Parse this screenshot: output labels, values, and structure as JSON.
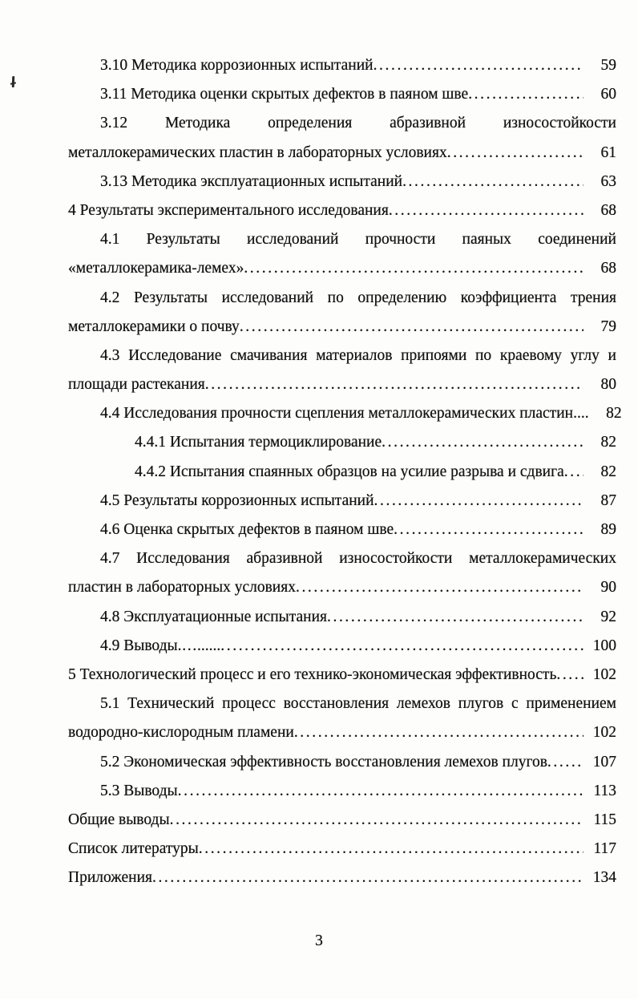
{
  "toc": {
    "lines": [
      {
        "text": "3.10 Методика коррозионных испытаний",
        "page": "59",
        "indent": 1,
        "justify": false
      },
      {
        "text": "3.11 Методика оценки скрытых дефектов в паяном шве",
        "page": "60",
        "indent": 1,
        "justify": false
      },
      {
        "text": "3.12 Методика определения абразивной износостойкости",
        "page": null,
        "indent": 1,
        "justify": true
      },
      {
        "text": "металлокерамических пластин в лабораторных условиях",
        "page": "61",
        "indent": 0,
        "justify": false
      },
      {
        "text": "3.13 Методика эксплуатационных испытаний",
        "page": "63",
        "indent": 1,
        "justify": false
      },
      {
        "text": "4 Результаты экспериментального исследования",
        "page": "68",
        "indent": 0,
        "justify": false
      },
      {
        "text": "4.1 Результаты исследований прочности паяных соединений",
        "page": null,
        "indent": 1,
        "justify": true
      },
      {
        "text": "«металлокерамика-лемех»",
        "page": "68",
        "indent": 0,
        "justify": false
      },
      {
        "text": "4.2 Результаты исследований по определению коэффициента трения",
        "page": null,
        "indent": 1,
        "justify": true
      },
      {
        "text": "металлокерамики о почву",
        "page": "79",
        "indent": 0,
        "justify": false
      },
      {
        "text": "4.3 Исследование смачивания материалов припоями по краевому углу и",
        "page": null,
        "indent": 1,
        "justify": true
      },
      {
        "text": "площади растекания",
        "page": "80",
        "indent": 0,
        "justify": false
      },
      {
        "text": "4.4 Исследования прочности сцепления металлокерамических пластин....",
        "page": "82",
        "indent": 1,
        "justify": false
      },
      {
        "text": "4.4.1 Испытания термоциклирование",
        "page": "82",
        "indent": 2,
        "justify": false
      },
      {
        "text": "4.4.2 Испытания спаянных образцов на усилие разрыва и сдвига",
        "page": "82",
        "indent": 2,
        "justify": false
      },
      {
        "text": "4.5 Результаты коррозионных испытаний",
        "page": "87",
        "indent": 1,
        "justify": false
      },
      {
        "text": "4.6 Оценка скрытых дефектов в паяном шве",
        "page": "89",
        "indent": 1,
        "justify": false
      },
      {
        "text": "4.7 Исследования абразивной износостойкости металлокерамических",
        "page": null,
        "indent": 1,
        "justify": true
      },
      {
        "text": "пластин в лабораторных условиях",
        "page": "90",
        "indent": 0,
        "justify": false
      },
      {
        "text": "4.8 Эксплуатационные испытания",
        "page": "92",
        "indent": 1,
        "justify": false
      },
      {
        "text": "4.9 Выводы.…......",
        "page": "100",
        "indent": 1,
        "justify": false
      },
      {
        "text": "5 Технологический процесс и его технико-экономическая эффективность",
        "page": "102",
        "indent": 0,
        "justify": false
      },
      {
        "text": "5.1 Технический процесс восстановления лемехов плугов с применением",
        "page": null,
        "indent": 1,
        "justify": true
      },
      {
        "text": "водородно-кислородным пламени",
        "page": "102",
        "indent": 0,
        "justify": false
      },
      {
        "text": "5.2 Экономическая эффективность восстановления лемехов плугов",
        "page": "107",
        "indent": 1,
        "justify": false
      },
      {
        "text": "5.3 Выводы",
        "page": "113",
        "indent": 1,
        "justify": false
      },
      {
        "text": "Общие выводы",
        "page": "115",
        "indent": 0,
        "justify": false
      },
      {
        "text": "Список литературы",
        "page": "117",
        "indent": 0,
        "justify": false
      },
      {
        "text": "Приложения",
        "page": "134",
        "indent": 0,
        "justify": false
      }
    ]
  },
  "footer": {
    "page_number": "3"
  }
}
